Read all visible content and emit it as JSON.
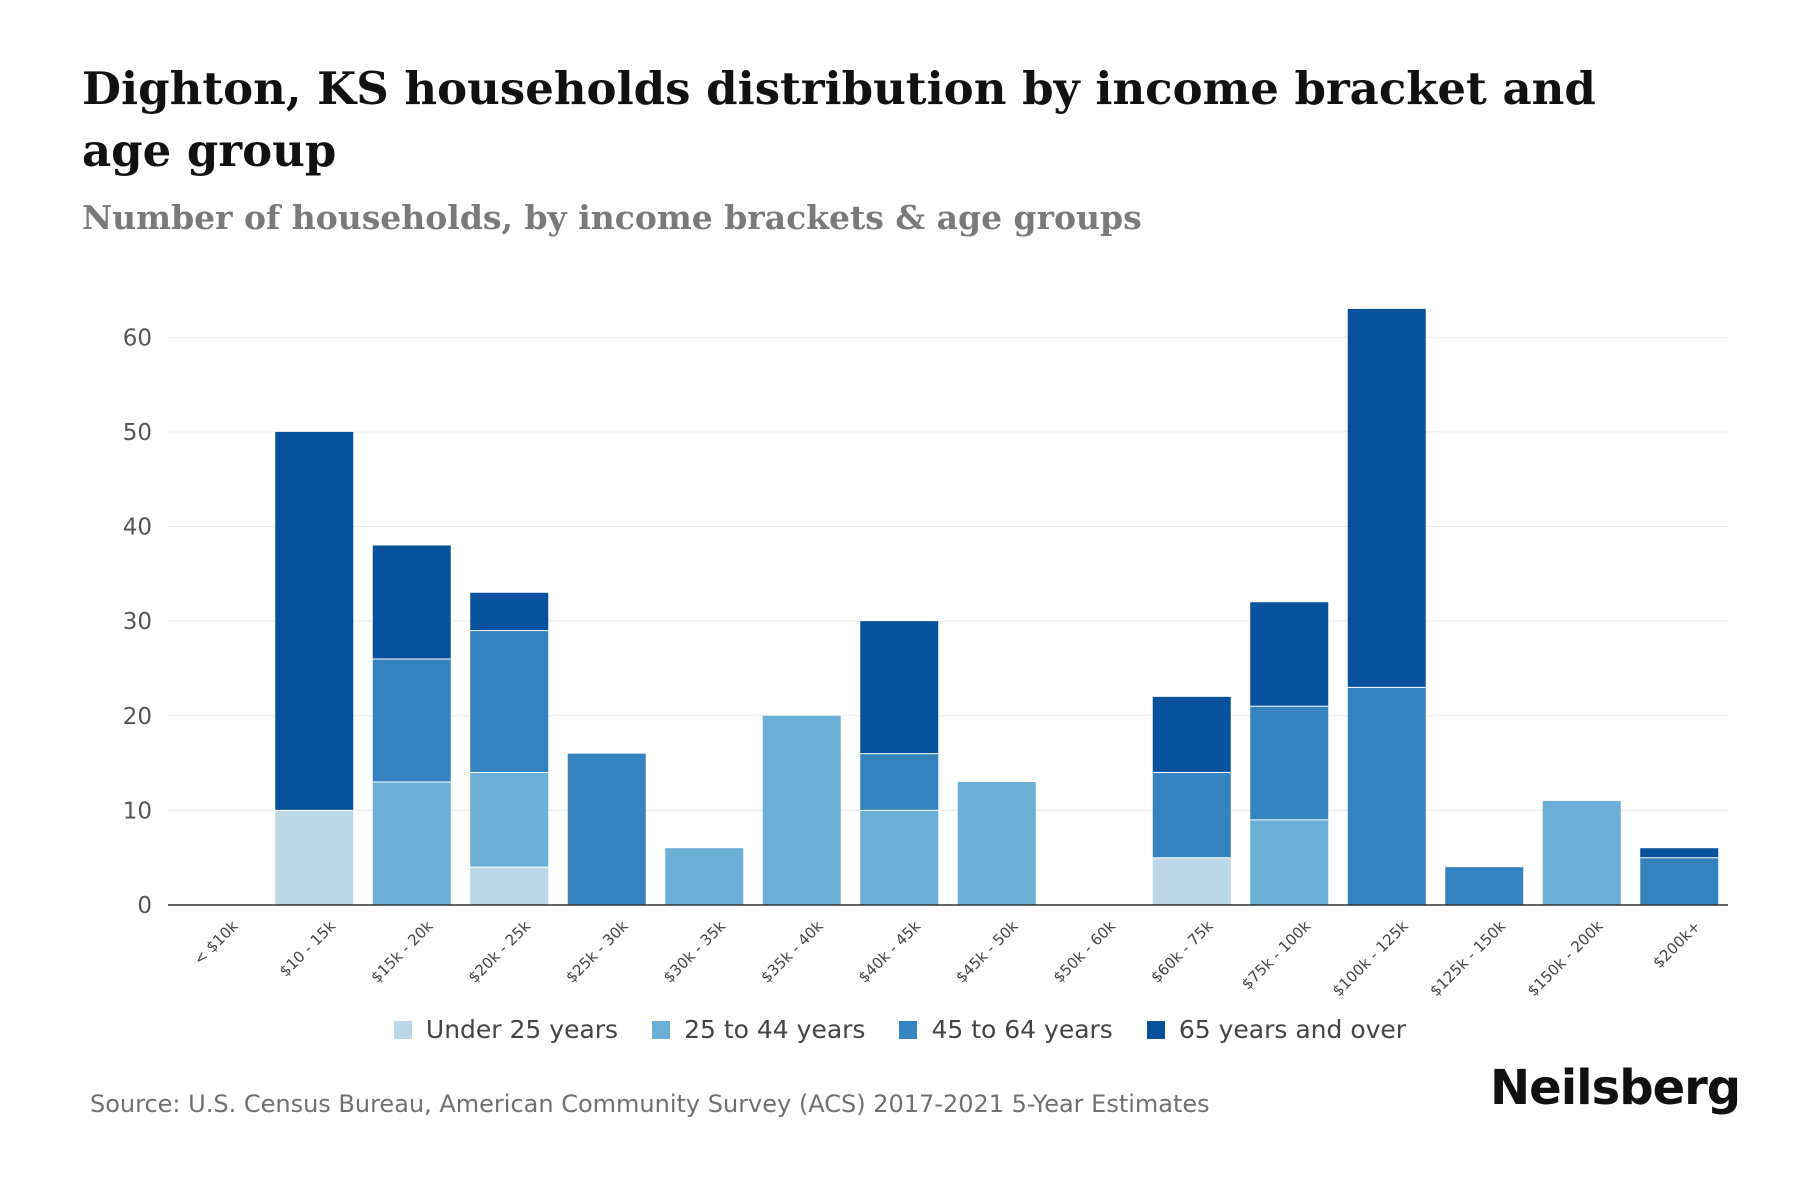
{
  "chart_data": {
    "type": "bar",
    "stacked": true,
    "title": "Dighton, KS households distribution by income bracket and age group",
    "subtitle": "Number of households, by income brackets & age groups",
    "categories": [
      "< $10k",
      "$10 - 15k",
      "$15k - 20k",
      "$20k - 25k",
      "$25k - 30k",
      "$30k - 35k",
      "$35k - 40k",
      "$40k - 45k",
      "$45k - 50k",
      "$50k - 60k",
      "$60k - 75k",
      "$75k - 100k",
      "$100k - 125k",
      "$125k - 150k",
      "$150k - 200k",
      "$200k+"
    ],
    "series": [
      {
        "name": "Under 25 years",
        "color": "#bcd7e8",
        "values": [
          0,
          10,
          0,
          4,
          0,
          0,
          0,
          0,
          0,
          0,
          5,
          0,
          0,
          0,
          0,
          0
        ]
      },
      {
        "name": "25 to 44 years",
        "color": "#6baed6",
        "values": [
          0,
          0,
          13,
          10,
          0,
          6,
          20,
          10,
          13,
          0,
          0,
          9,
          0,
          0,
          11,
          0
        ]
      },
      {
        "name": "45 to 64 years",
        "color": "#3483bf",
        "values": [
          0,
          0,
          13,
          15,
          16,
          0,
          0,
          6,
          0,
          0,
          9,
          12,
          23,
          4,
          0,
          5
        ]
      },
      {
        "name": "65 years and over",
        "color": "#08519c",
        "values": [
          0,
          40,
          12,
          4,
          0,
          0,
          0,
          14,
          0,
          0,
          8,
          11,
          40,
          0,
          0,
          1
        ]
      }
    ],
    "ylim": [
      0,
      65
    ],
    "yticks": [
      0,
      10,
      20,
      30,
      40,
      50,
      60
    ],
    "xlabel": "",
    "ylabel": "",
    "legend_position": "bottom",
    "grid": true
  },
  "footer": {
    "source": "Source: U.S. Census Bureau, American Community Survey (ACS) 2017-2021 5-Year Estimates",
    "brand": "Neilsberg"
  }
}
